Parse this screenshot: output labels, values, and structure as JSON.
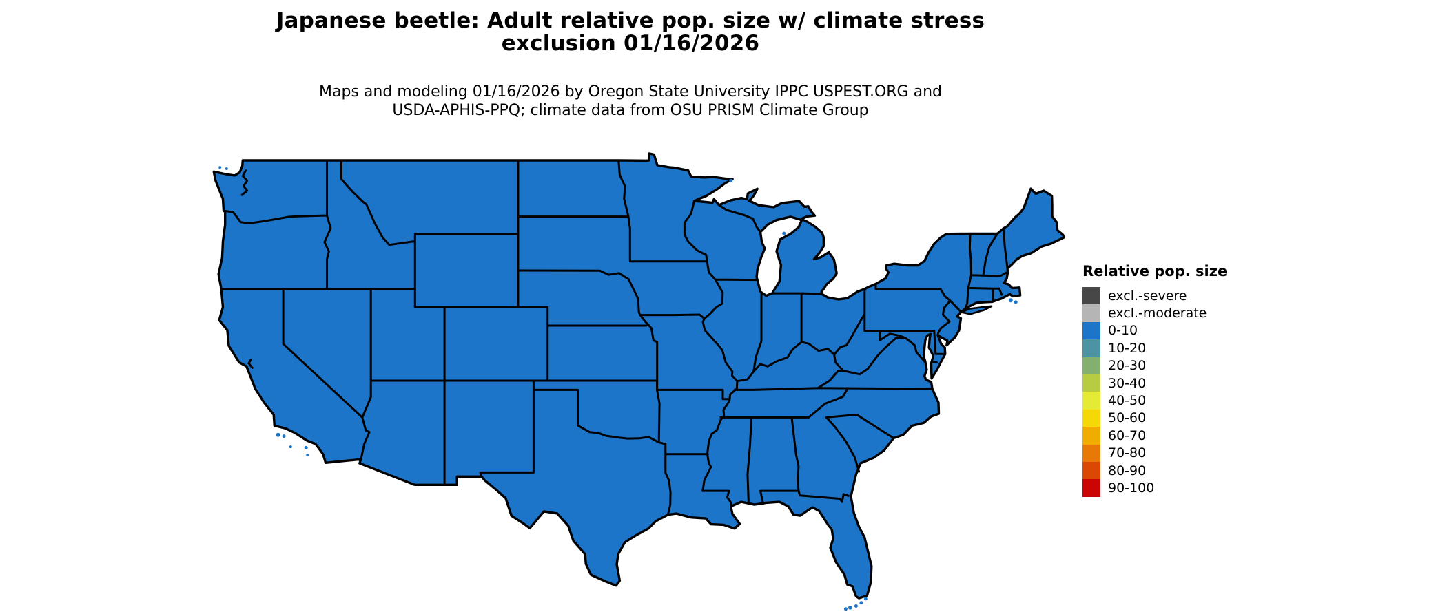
{
  "title": {
    "line1": "Japanese beetle: Adult relative pop. size w/ climate stress",
    "line2": "exclusion 01/16/2026"
  },
  "subtitle": {
    "line1": "Maps and modeling 01/16/2026 by Oregon State University IPPC USPEST.ORG and",
    "line2": "USDA-APHIS-PPQ; climate data from OSU PRISM Climate Group"
  },
  "legend": {
    "title": "Relative pop. size",
    "items": [
      {
        "label": "excl.-severe",
        "color": "#474747"
      },
      {
        "label": "excl.-moderate",
        "color": "#B5B5B5"
      },
      {
        "label": "0-10",
        "color": "#1D75C9"
      },
      {
        "label": "10-20",
        "color": "#4D93A4"
      },
      {
        "label": "20-30",
        "color": "#84B06F"
      },
      {
        "label": "30-40",
        "color": "#B8CC42"
      },
      {
        "label": "40-50",
        "color": "#E5EA35"
      },
      {
        "label": "50-60",
        "color": "#F5D808"
      },
      {
        "label": "60-70",
        "color": "#F1AC00"
      },
      {
        "label": "70-80",
        "color": "#E87907"
      },
      {
        "label": "80-90",
        "color": "#DC4803"
      },
      {
        "label": "90-100",
        "color": "#CB0404"
      }
    ]
  },
  "map": {
    "region": "Contiguous United States",
    "all_states_category": "0-10",
    "fill_color": "#1D75C9",
    "border_color": "#000000",
    "background_color": "#FFFFFF"
  }
}
